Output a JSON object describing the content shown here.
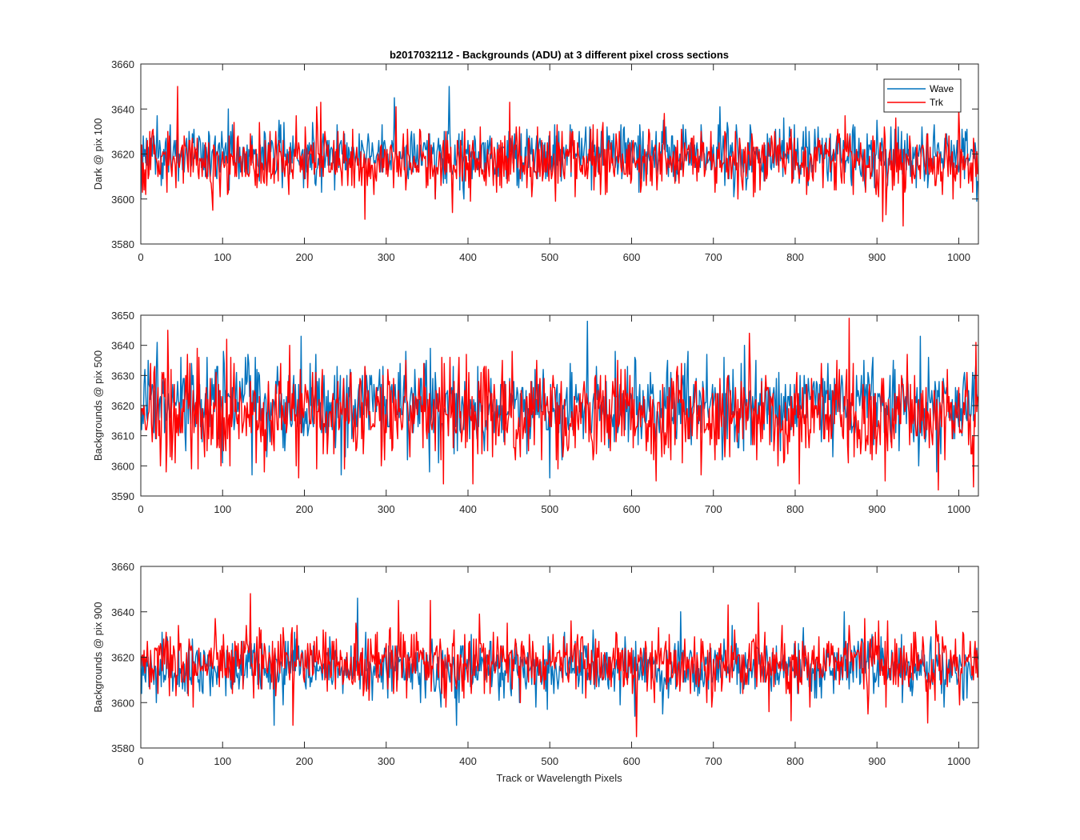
{
  "figure": {
    "title": "b2017032112 - Backgrounds (ADU) at 3 different pixel cross sections",
    "xlabel": "Track or Wavelength Pixels"
  },
  "colors": {
    "wave": "#0072BD",
    "trk": "#FF0000",
    "axis": "#262626",
    "background": "#FFFFFF"
  },
  "legend": {
    "placement": "top-right",
    "entries": [
      "Wave",
      "Trk"
    ]
  },
  "chart_data": [
    {
      "type": "line",
      "title": "b2017032112 - Backgrounds (ADU) at 3 different pixel cross sections",
      "xlabel": "",
      "ylabel": "Dark @ pix 100",
      "xlim": [
        0,
        1024
      ],
      "ylim": [
        3580,
        3660
      ],
      "xticks": [
        0,
        100,
        200,
        300,
        400,
        500,
        600,
        700,
        800,
        900,
        1000
      ],
      "yticks": [
        3580,
        3600,
        3620,
        3640,
        3660
      ],
      "grid": false,
      "legend": "top-right",
      "series": [
        {
          "name": "Wave",
          "color": "#0072BD",
          "n_points": 1024,
          "mean": 3620,
          "std": 6.5,
          "min": 3597,
          "max": 3650,
          "peaks": [
            {
              "x": 377,
              "y": 3650
            },
            {
              "x": 310,
              "y": 3645
            },
            {
              "x": 45,
              "y": 3633
            }
          ],
          "dips": [
            {
              "x": 0,
              "y": 3600
            },
            {
              "x": 360,
              "y": 3600
            },
            {
              "x": 395,
              "y": 3600
            }
          ]
        },
        {
          "name": "Trk",
          "color": "#FF0000",
          "n_points": 1024,
          "mean": 3617,
          "std": 7,
          "min": 3588,
          "max": 3650,
          "peaks": [
            {
              "x": 45,
              "y": 3650
            },
            {
              "x": 220,
              "y": 3643
            },
            {
              "x": 451,
              "y": 3643
            },
            {
              "x": 1000,
              "y": 3640
            }
          ],
          "dips": [
            {
              "x": 88,
              "y": 3595
            },
            {
              "x": 381,
              "y": 3594
            },
            {
              "x": 932,
              "y": 3588
            },
            {
              "x": 907,
              "y": 3590
            }
          ]
        }
      ]
    },
    {
      "type": "line",
      "title": "",
      "xlabel": "",
      "ylabel": "Backgrounds @ pix 500",
      "xlim": [
        0,
        1024
      ],
      "ylim": [
        3590,
        3650
      ],
      "xticks": [
        0,
        100,
        200,
        300,
        400,
        500,
        600,
        700,
        800,
        900,
        1000
      ],
      "yticks": [
        3590,
        3600,
        3610,
        3620,
        3630,
        3640,
        3650
      ],
      "grid": false,
      "series": [
        {
          "name": "Wave",
          "color": "#0072BD",
          "n_points": 1024,
          "mean": 3620,
          "std": 7,
          "min": 3596,
          "max": 3648,
          "peaks": [
            {
              "x": 546,
              "y": 3648
            },
            {
              "x": 500,
              "y": 3645
            },
            {
              "x": 20,
              "y": 3641
            },
            {
              "x": 196,
              "y": 3643
            }
          ],
          "dips": [
            {
              "x": 136,
              "y": 3597
            },
            {
              "x": 245,
              "y": 3597
            },
            {
              "x": 500,
              "y": 3596
            }
          ]
        },
        {
          "name": "Trk",
          "color": "#FF0000",
          "n_points": 1024,
          "mean": 3617,
          "std": 8,
          "min": 3592,
          "max": 3649,
          "peaks": [
            {
              "x": 866,
              "y": 3649
            },
            {
              "x": 33,
              "y": 3645
            },
            {
              "x": 1021,
              "y": 3641
            },
            {
              "x": 105,
              "y": 3642
            }
          ],
          "dips": [
            {
              "x": 1018,
              "y": 3593
            },
            {
              "x": 975,
              "y": 3592
            },
            {
              "x": 805,
              "y": 3594
            },
            {
              "x": 630,
              "y": 3595
            }
          ]
        }
      ]
    },
    {
      "type": "line",
      "title": "",
      "xlabel": "Track or Wavelength Pixels",
      "ylabel": "Backgrounds @ pix 900",
      "xlim": [
        0,
        1024
      ],
      "ylim": [
        3580,
        3660
      ],
      "xticks": [
        0,
        100,
        200,
        300,
        400,
        500,
        600,
        700,
        800,
        900,
        1000
      ],
      "yticks": [
        3580,
        3600,
        3620,
        3640,
        3660
      ],
      "grid": false,
      "series": [
        {
          "name": "Wave",
          "color": "#0072BD",
          "n_points": 1024,
          "mean": 3615,
          "std": 6.5,
          "min": 3590,
          "max": 3646,
          "peaks": [
            {
              "x": 265,
              "y": 3646
            },
            {
              "x": 660,
              "y": 3640
            },
            {
              "x": 860,
              "y": 3640
            }
          ],
          "dips": [
            {
              "x": 163,
              "y": 3590
            },
            {
              "x": 386,
              "y": 3590
            },
            {
              "x": 604,
              "y": 3594
            }
          ]
        },
        {
          "name": "Trk",
          "color": "#FF0000",
          "n_points": 1024,
          "mean": 3618,
          "std": 7.5,
          "min": 3585,
          "max": 3648,
          "peaks": [
            {
              "x": 134,
              "y": 3648
            },
            {
              "x": 354,
              "y": 3645
            },
            {
              "x": 315,
              "y": 3645
            },
            {
              "x": 718,
              "y": 3643
            }
          ],
          "dips": [
            {
              "x": 606,
              "y": 3585
            },
            {
              "x": 186,
              "y": 3590
            },
            {
              "x": 962,
              "y": 3591
            },
            {
              "x": 795,
              "y": 3592
            }
          ]
        }
      ]
    }
  ]
}
